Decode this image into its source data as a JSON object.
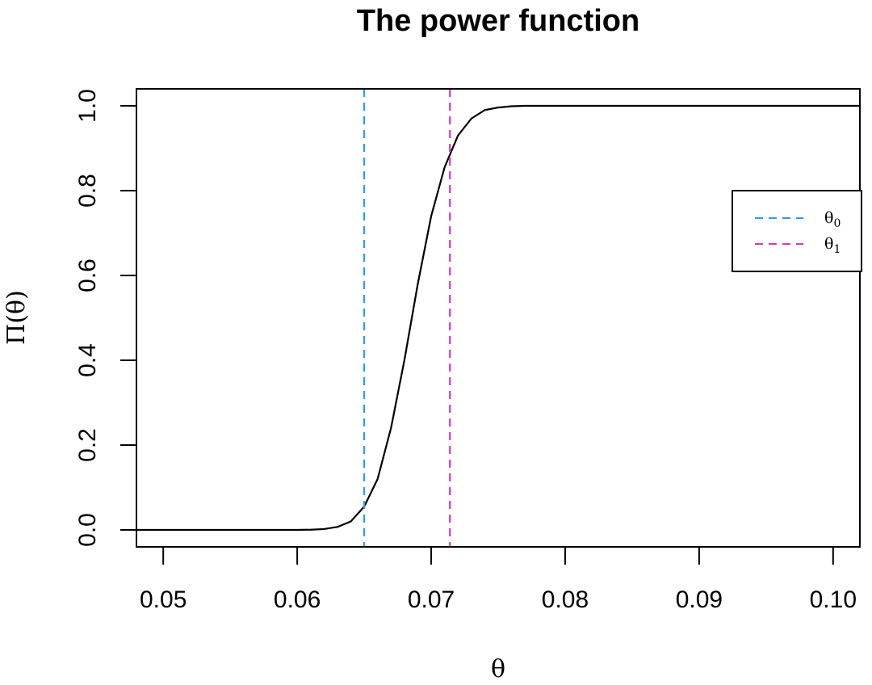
{
  "chart_data": {
    "type": "line",
    "title": "The power function",
    "xlabel": "θ",
    "ylabel": "Π(θ)",
    "xlim": [
      0.048,
      0.102
    ],
    "ylim": [
      -0.04,
      1.04
    ],
    "x_ticks": [
      0.05,
      0.06,
      0.07,
      0.08,
      0.09,
      0.1
    ],
    "x_tick_labels": [
      "0.05",
      "0.06",
      "0.07",
      "0.08",
      "0.09",
      "0.10"
    ],
    "y_ticks": [
      0.0,
      0.2,
      0.4,
      0.6,
      0.8,
      1.0
    ],
    "y_tick_labels": [
      "0.0",
      "0.2",
      "0.4",
      "0.6",
      "0.8",
      "1.0"
    ],
    "grid": false,
    "series": [
      {
        "x": [
          0.048,
          0.058,
          0.06,
          0.061,
          0.062,
          0.063,
          0.064,
          0.065,
          0.066,
          0.067,
          0.068,
          0.069,
          0.07,
          0.071,
          0.072,
          0.073,
          0.074,
          0.075,
          0.076,
          0.077,
          0.08,
          0.102
        ],
        "y": [
          0.0,
          0.0,
          0.0,
          0.0005,
          0.002,
          0.007,
          0.02,
          0.055,
          0.12,
          0.24,
          0.4,
          0.58,
          0.74,
          0.855,
          0.93,
          0.97,
          0.99,
          0.996,
          0.999,
          1.0,
          1.0,
          1.0
        ],
        "color": "#000000"
      }
    ],
    "vlines": [
      {
        "name": "θ0",
        "x": 0.065,
        "color": "#2E9BE8",
        "style": "dashed"
      },
      {
        "name": "θ1",
        "x": 0.0714,
        "color": "#D339B8",
        "style": "dashed"
      }
    ],
    "legend": {
      "placement": "right",
      "entries": [
        {
          "symbol": "θ",
          "subscript": "0",
          "color": "#2E9BE8"
        },
        {
          "symbol": "θ",
          "subscript": "1",
          "color": "#D339B8"
        }
      ]
    }
  }
}
